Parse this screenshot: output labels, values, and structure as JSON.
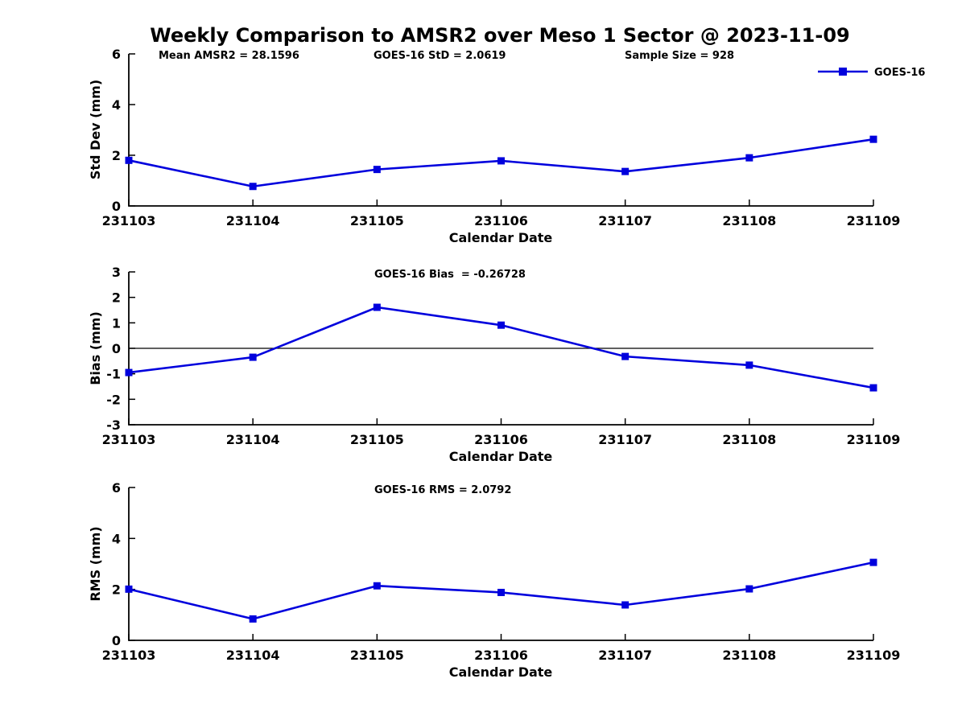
{
  "title": "Weekly Comparison to AMSR2 over Meso 1 Sector @ 2023-11-09",
  "annotations": {
    "mean_amsr2": "Mean AMSR2 = 28.1596",
    "goes16_std": "GOES-16 StD = 2.0619",
    "sample_size": "Sample Size = 928"
  },
  "legend": {
    "label": "GOES-16",
    "position": "top-right"
  },
  "colors": {
    "line": "#0000DD",
    "axis": "#000000",
    "text": "#000000",
    "background": "#FFFFFF"
  },
  "chart_data": [
    {
      "type": "line",
      "title": "",
      "ylabel": "Std Dev (mm)",
      "xlabel": "Calendar Date",
      "categories": [
        "231103",
        "231104",
        "231105",
        "231106",
        "231107",
        "231108",
        "231109"
      ],
      "series": [
        {
          "name": "GOES-16",
          "values": [
            1.8,
            0.77,
            1.44,
            1.78,
            1.36,
            1.9,
            2.63
          ]
        }
      ],
      "ylim": [
        0,
        6
      ],
      "yticks": [
        0,
        2,
        4,
        6
      ],
      "zero_line": false,
      "grid": false,
      "legend_position": "top-right"
    },
    {
      "type": "line",
      "title": "GOES-16 Bias  = -0.26728",
      "ylabel": "Bias (mm)",
      "xlabel": "Calendar Date",
      "categories": [
        "231103",
        "231104",
        "231105",
        "231106",
        "231107",
        "231108",
        "231109"
      ],
      "series": [
        {
          "name": "GOES-16",
          "values": [
            -0.95,
            -0.35,
            1.61,
            0.91,
            -0.32,
            -0.66,
            -1.55
          ]
        }
      ],
      "ylim": [
        -3,
        3
      ],
      "yticks": [
        -3,
        -2,
        -1,
        0,
        1,
        2,
        3
      ],
      "zero_line": true,
      "grid": false,
      "legend_position": "none"
    },
    {
      "type": "line",
      "title": "GOES-16 RMS = 2.0792",
      "ylabel": "RMS (mm)",
      "xlabel": "Calendar Date",
      "categories": [
        "231103",
        "231104",
        "231105",
        "231106",
        "231107",
        "231108",
        "231109"
      ],
      "series": [
        {
          "name": "GOES-16",
          "values": [
            2.01,
            0.84,
            2.14,
            1.88,
            1.39,
            2.02,
            3.06
          ]
        }
      ],
      "ylim": [
        0,
        6
      ],
      "yticks": [
        0,
        2,
        4,
        6
      ],
      "zero_line": false,
      "grid": false,
      "legend_position": "none"
    }
  ]
}
